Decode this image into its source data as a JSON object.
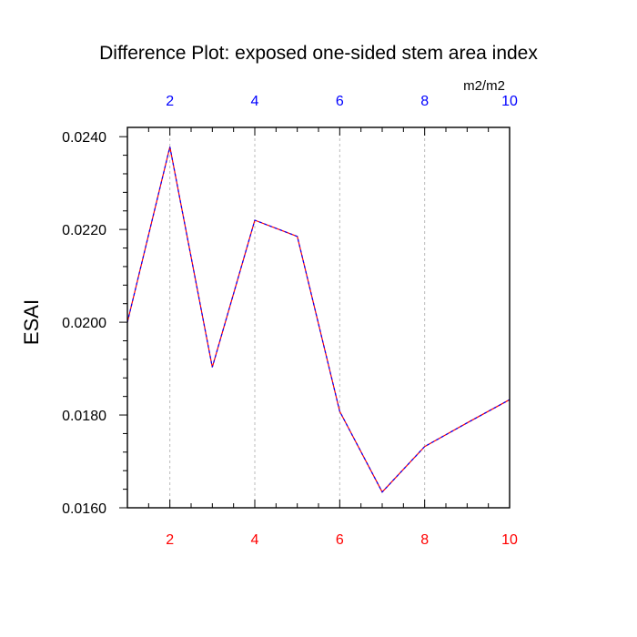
{
  "chart_data": {
    "type": "line",
    "title": "Difference Plot: exposed one-sided stem area index",
    "units_label": "m2/m2",
    "ylabel": "ESAI",
    "xlabel": "",
    "x": [
      1,
      2,
      3,
      4,
      5,
      6,
      7,
      8,
      9,
      10
    ],
    "series": [
      {
        "values": [
          0.02,
          0.02378,
          0.01903,
          0.0222,
          0.02185,
          0.01808,
          0.01634,
          0.01732,
          0.01783,
          0.01833
        ]
      }
    ],
    "xlim": [
      1,
      10
    ],
    "ylim": [
      0.016,
      0.0242
    ],
    "x_ticks_bottom": [
      "2",
      "4",
      "6",
      "8",
      "10"
    ],
    "x_ticks_top": [
      "2",
      "4",
      "6",
      "8",
      "10"
    ],
    "x_tick_values": [
      2,
      4,
      6,
      8,
      10
    ],
    "y_tick_values": [
      0.016,
      0.018,
      0.02,
      0.022,
      0.024
    ],
    "y_ticks": [
      "0.0160",
      "0.0180",
      "0.0200",
      "0.0220",
      "0.0240"
    ],
    "grid": "vertical dashed",
    "colors": {
      "bottom_tick_labels": "#ff0000",
      "top_tick_labels": "#0000ff",
      "line_primary": "#ff0000",
      "line_overlay": "#0000ff",
      "grid": "#bbbbbb",
      "axis": "#000000"
    }
  }
}
